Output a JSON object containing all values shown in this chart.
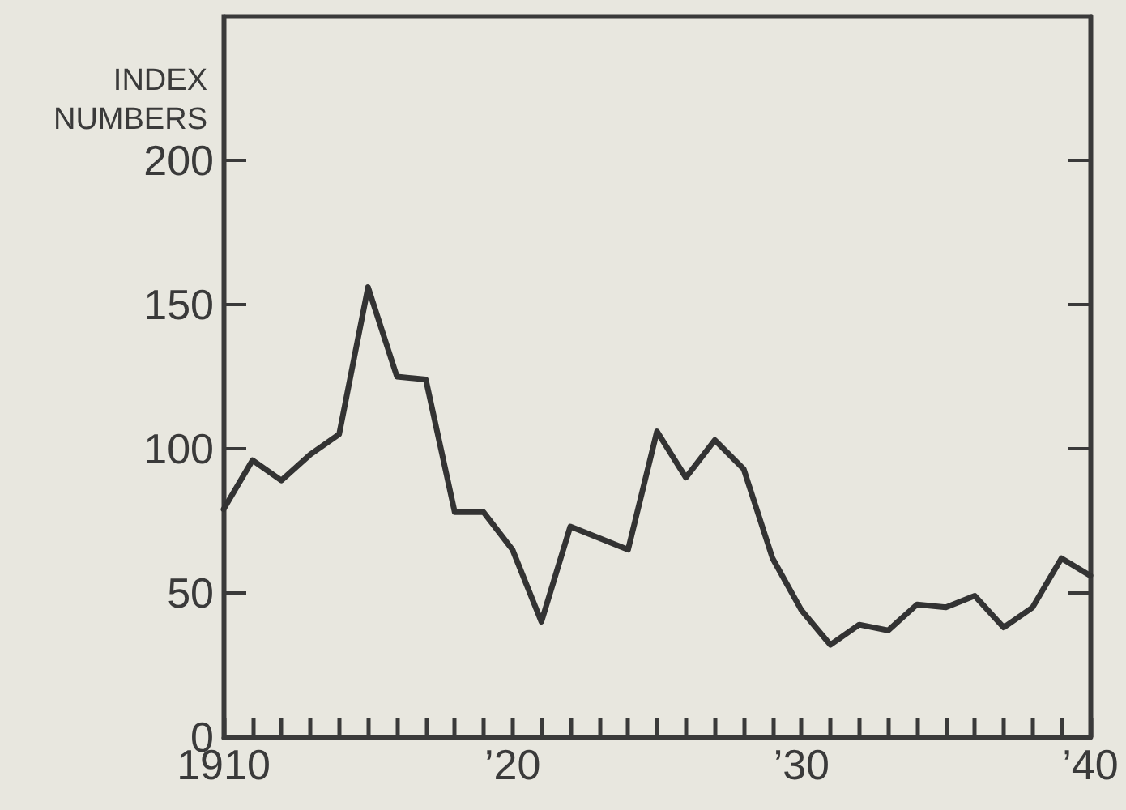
{
  "chart_data": {
    "type": "line",
    "ylabel": "INDEX NUMBERS",
    "x": [
      1910,
      1911,
      1912,
      1913,
      1914,
      1915,
      1916,
      1917,
      1918,
      1919,
      1920,
      1921,
      1922,
      1923,
      1924,
      1925,
      1926,
      1927,
      1928,
      1929,
      1930,
      1931,
      1932,
      1933,
      1934,
      1935,
      1936,
      1937,
      1938,
      1939,
      1940
    ],
    "series": [
      {
        "color": "#333333",
        "values": [
          79,
          96,
          89,
          98,
          105,
          156,
          125,
          124,
          78,
          78,
          65,
          40,
          73,
          69,
          65,
          106,
          90,
          103,
          93,
          62,
          44,
          32,
          39,
          37,
          46,
          45,
          49,
          38,
          45,
          62,
          56
        ]
      }
    ],
    "xlim": [
      1910,
      1940
    ],
    "xticks": [
      {
        "value": 1910,
        "label": "1910"
      },
      {
        "value": 1911,
        "label": null
      },
      {
        "value": 1912,
        "label": null
      },
      {
        "value": 1913,
        "label": null
      },
      {
        "value": 1914,
        "label": null
      },
      {
        "value": 1915,
        "label": null
      },
      {
        "value": 1916,
        "label": null
      },
      {
        "value": 1917,
        "label": null
      },
      {
        "value": 1918,
        "label": null
      },
      {
        "value": 1919,
        "label": null
      },
      {
        "value": 1920,
        "label": "’20"
      },
      {
        "value": 1921,
        "label": null
      },
      {
        "value": 1922,
        "label": null
      },
      {
        "value": 1923,
        "label": null
      },
      {
        "value": 1924,
        "label": null
      },
      {
        "value": 1925,
        "label": null
      },
      {
        "value": 1926,
        "label": null
      },
      {
        "value": 1927,
        "label": null
      },
      {
        "value": 1928,
        "label": null
      },
      {
        "value": 1929,
        "label": null
      },
      {
        "value": 1930,
        "label": "’30"
      },
      {
        "value": 1931,
        "label": null
      },
      {
        "value": 1932,
        "label": null
      },
      {
        "value": 1933,
        "label": null
      },
      {
        "value": 1934,
        "label": null
      },
      {
        "value": 1935,
        "label": null
      },
      {
        "value": 1936,
        "label": null
      },
      {
        "value": 1937,
        "label": null
      },
      {
        "value": 1938,
        "label": null
      },
      {
        "value": 1939,
        "label": null
      },
      {
        "value": 1940,
        "label": "’40"
      }
    ],
    "ylim": [
      0,
      250
    ],
    "yticks": [
      0,
      50,
      100,
      150,
      200
    ],
    "marker": "none",
    "line_style": "solid"
  }
}
